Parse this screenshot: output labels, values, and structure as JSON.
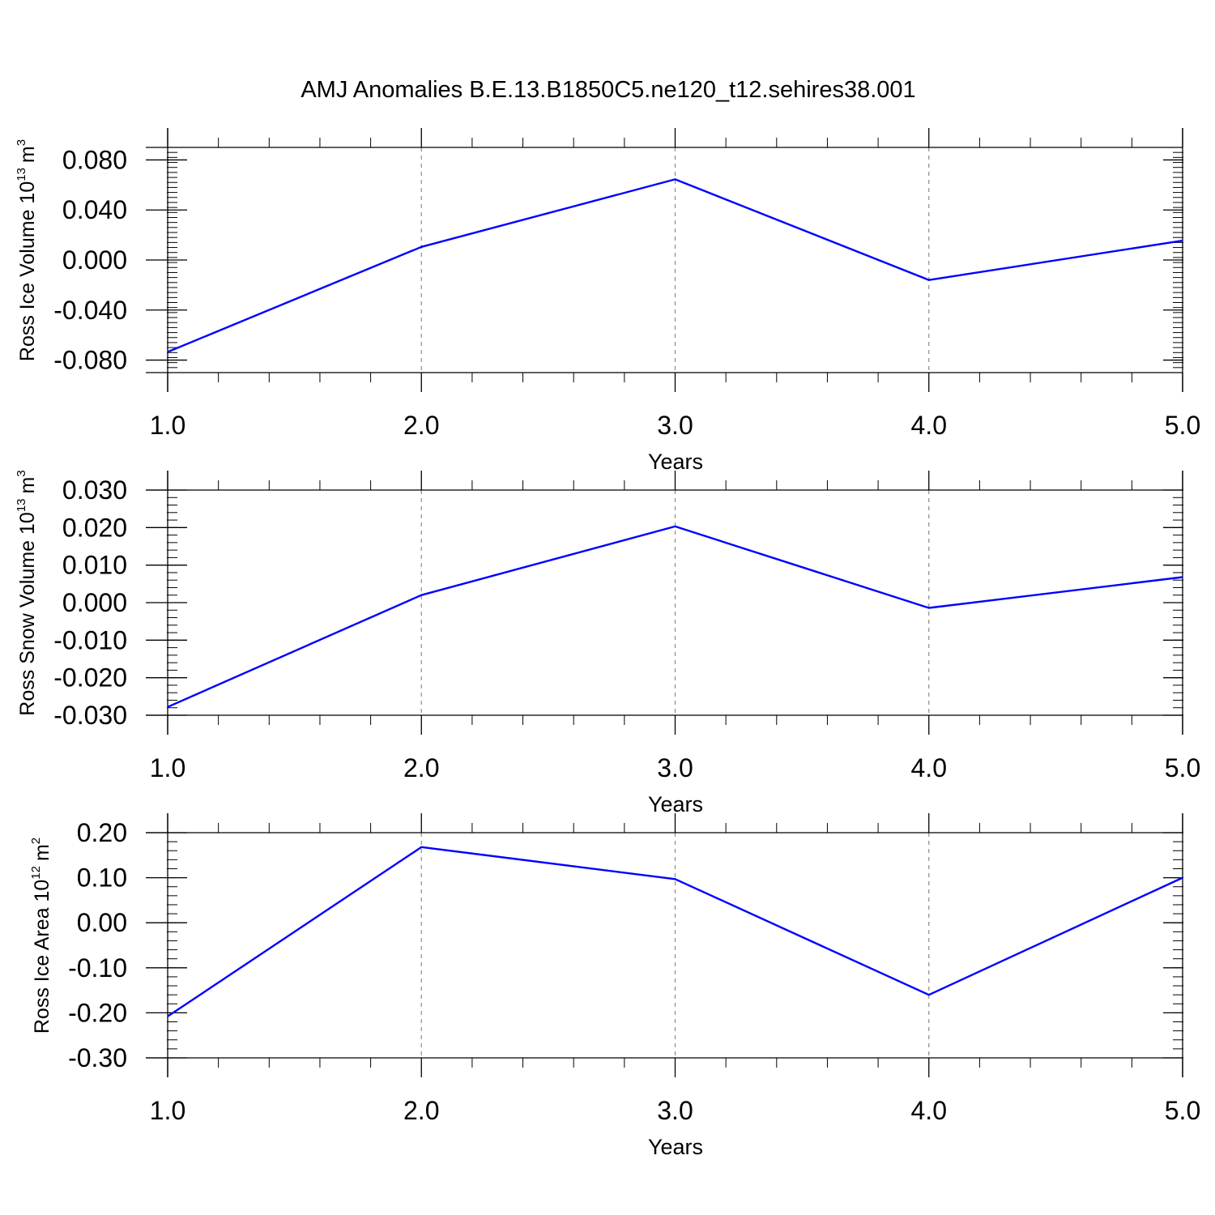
{
  "figure": {
    "title": "AMJ Anomalies B.E.13.B1850C5.ne120_t12.sehires38.001"
  },
  "chart_data": [
    {
      "type": "line",
      "xlabel": "Years",
      "ylabel": {
        "text": "Ross Ice Volume 10",
        "sup": "13",
        "unit": "m",
        "unit_sup": "3"
      },
      "x": [
        1.0,
        2.0,
        3.0,
        4.0,
        5.0
      ],
      "xlim": [
        1.0,
        5.0
      ],
      "xticks": [
        "1.0",
        "2.0",
        "3.0",
        "4.0",
        "5.0"
      ],
      "ylim": [
        -0.09,
        0.09
      ],
      "yticks": [
        {
          "value": 0.08,
          "label": "0.080"
        },
        {
          "value": 0.04,
          "label": "0.040"
        },
        {
          "value": 0.0,
          "label": "0.000"
        },
        {
          "value": -0.04,
          "label": "-0.040"
        },
        {
          "value": -0.08,
          "label": "-0.080"
        }
      ],
      "series": [
        {
          "values": [
            -0.0735,
            0.0105,
            0.0645,
            -0.016,
            0.0155
          ],
          "color": "#0000ff"
        }
      ],
      "grid": "dashed vertical at 2.0, 3.0, 4.0"
    },
    {
      "type": "line",
      "xlabel": "Years",
      "ylabel": {
        "text": "Ross Snow Volume 10",
        "sup": "13",
        "unit": "m",
        "unit_sup": "3"
      },
      "x": [
        1.0,
        2.0,
        3.0,
        4.0,
        5.0
      ],
      "xlim": [
        1.0,
        5.0
      ],
      "xticks": [
        "1.0",
        "2.0",
        "3.0",
        "4.0",
        "5.0"
      ],
      "ylim": [
        -0.03,
        0.03
      ],
      "yticks": [
        {
          "value": 0.03,
          "label": "0.030"
        },
        {
          "value": 0.02,
          "label": "0.020"
        },
        {
          "value": 0.01,
          "label": "0.010"
        },
        {
          "value": 0.0,
          "label": "0.000"
        },
        {
          "value": -0.01,
          "label": "-0.010"
        },
        {
          "value": -0.02,
          "label": "-0.020"
        },
        {
          "value": -0.03,
          "label": "-0.030"
        }
      ],
      "series": [
        {
          "values": [
            -0.0278,
            0.002,
            0.0203,
            -0.0014,
            0.0068
          ],
          "color": "#0000ff"
        }
      ],
      "grid": "dashed vertical at 2.0, 3.0, 4.0"
    },
    {
      "type": "line",
      "xlabel": "Years",
      "ylabel": {
        "text": "Ross Ice Area 10",
        "sup": "12",
        "unit": "m",
        "unit_sup": "2"
      },
      "x": [
        1.0,
        2.0,
        3.0,
        4.0,
        5.0
      ],
      "xlim": [
        1.0,
        5.0
      ],
      "xticks": [
        "1.0",
        "2.0",
        "3.0",
        "4.0",
        "5.0"
      ],
      "ylim": [
        -0.3,
        0.2
      ],
      "yticks": [
        {
          "value": 0.2,
          "label": "0.20"
        },
        {
          "value": 0.1,
          "label": "0.10"
        },
        {
          "value": 0.0,
          "label": "0.00"
        },
        {
          "value": -0.1,
          "label": "-0.10"
        },
        {
          "value": -0.2,
          "label": "-0.20"
        },
        {
          "value": -0.3,
          "label": "-0.30"
        }
      ],
      "series": [
        {
          "values": [
            -0.208,
            0.168,
            0.097,
            -0.16,
            0.1
          ],
          "color": "#0000ff"
        }
      ],
      "grid": "dashed vertical at 2.0, 3.0, 4.0"
    }
  ]
}
